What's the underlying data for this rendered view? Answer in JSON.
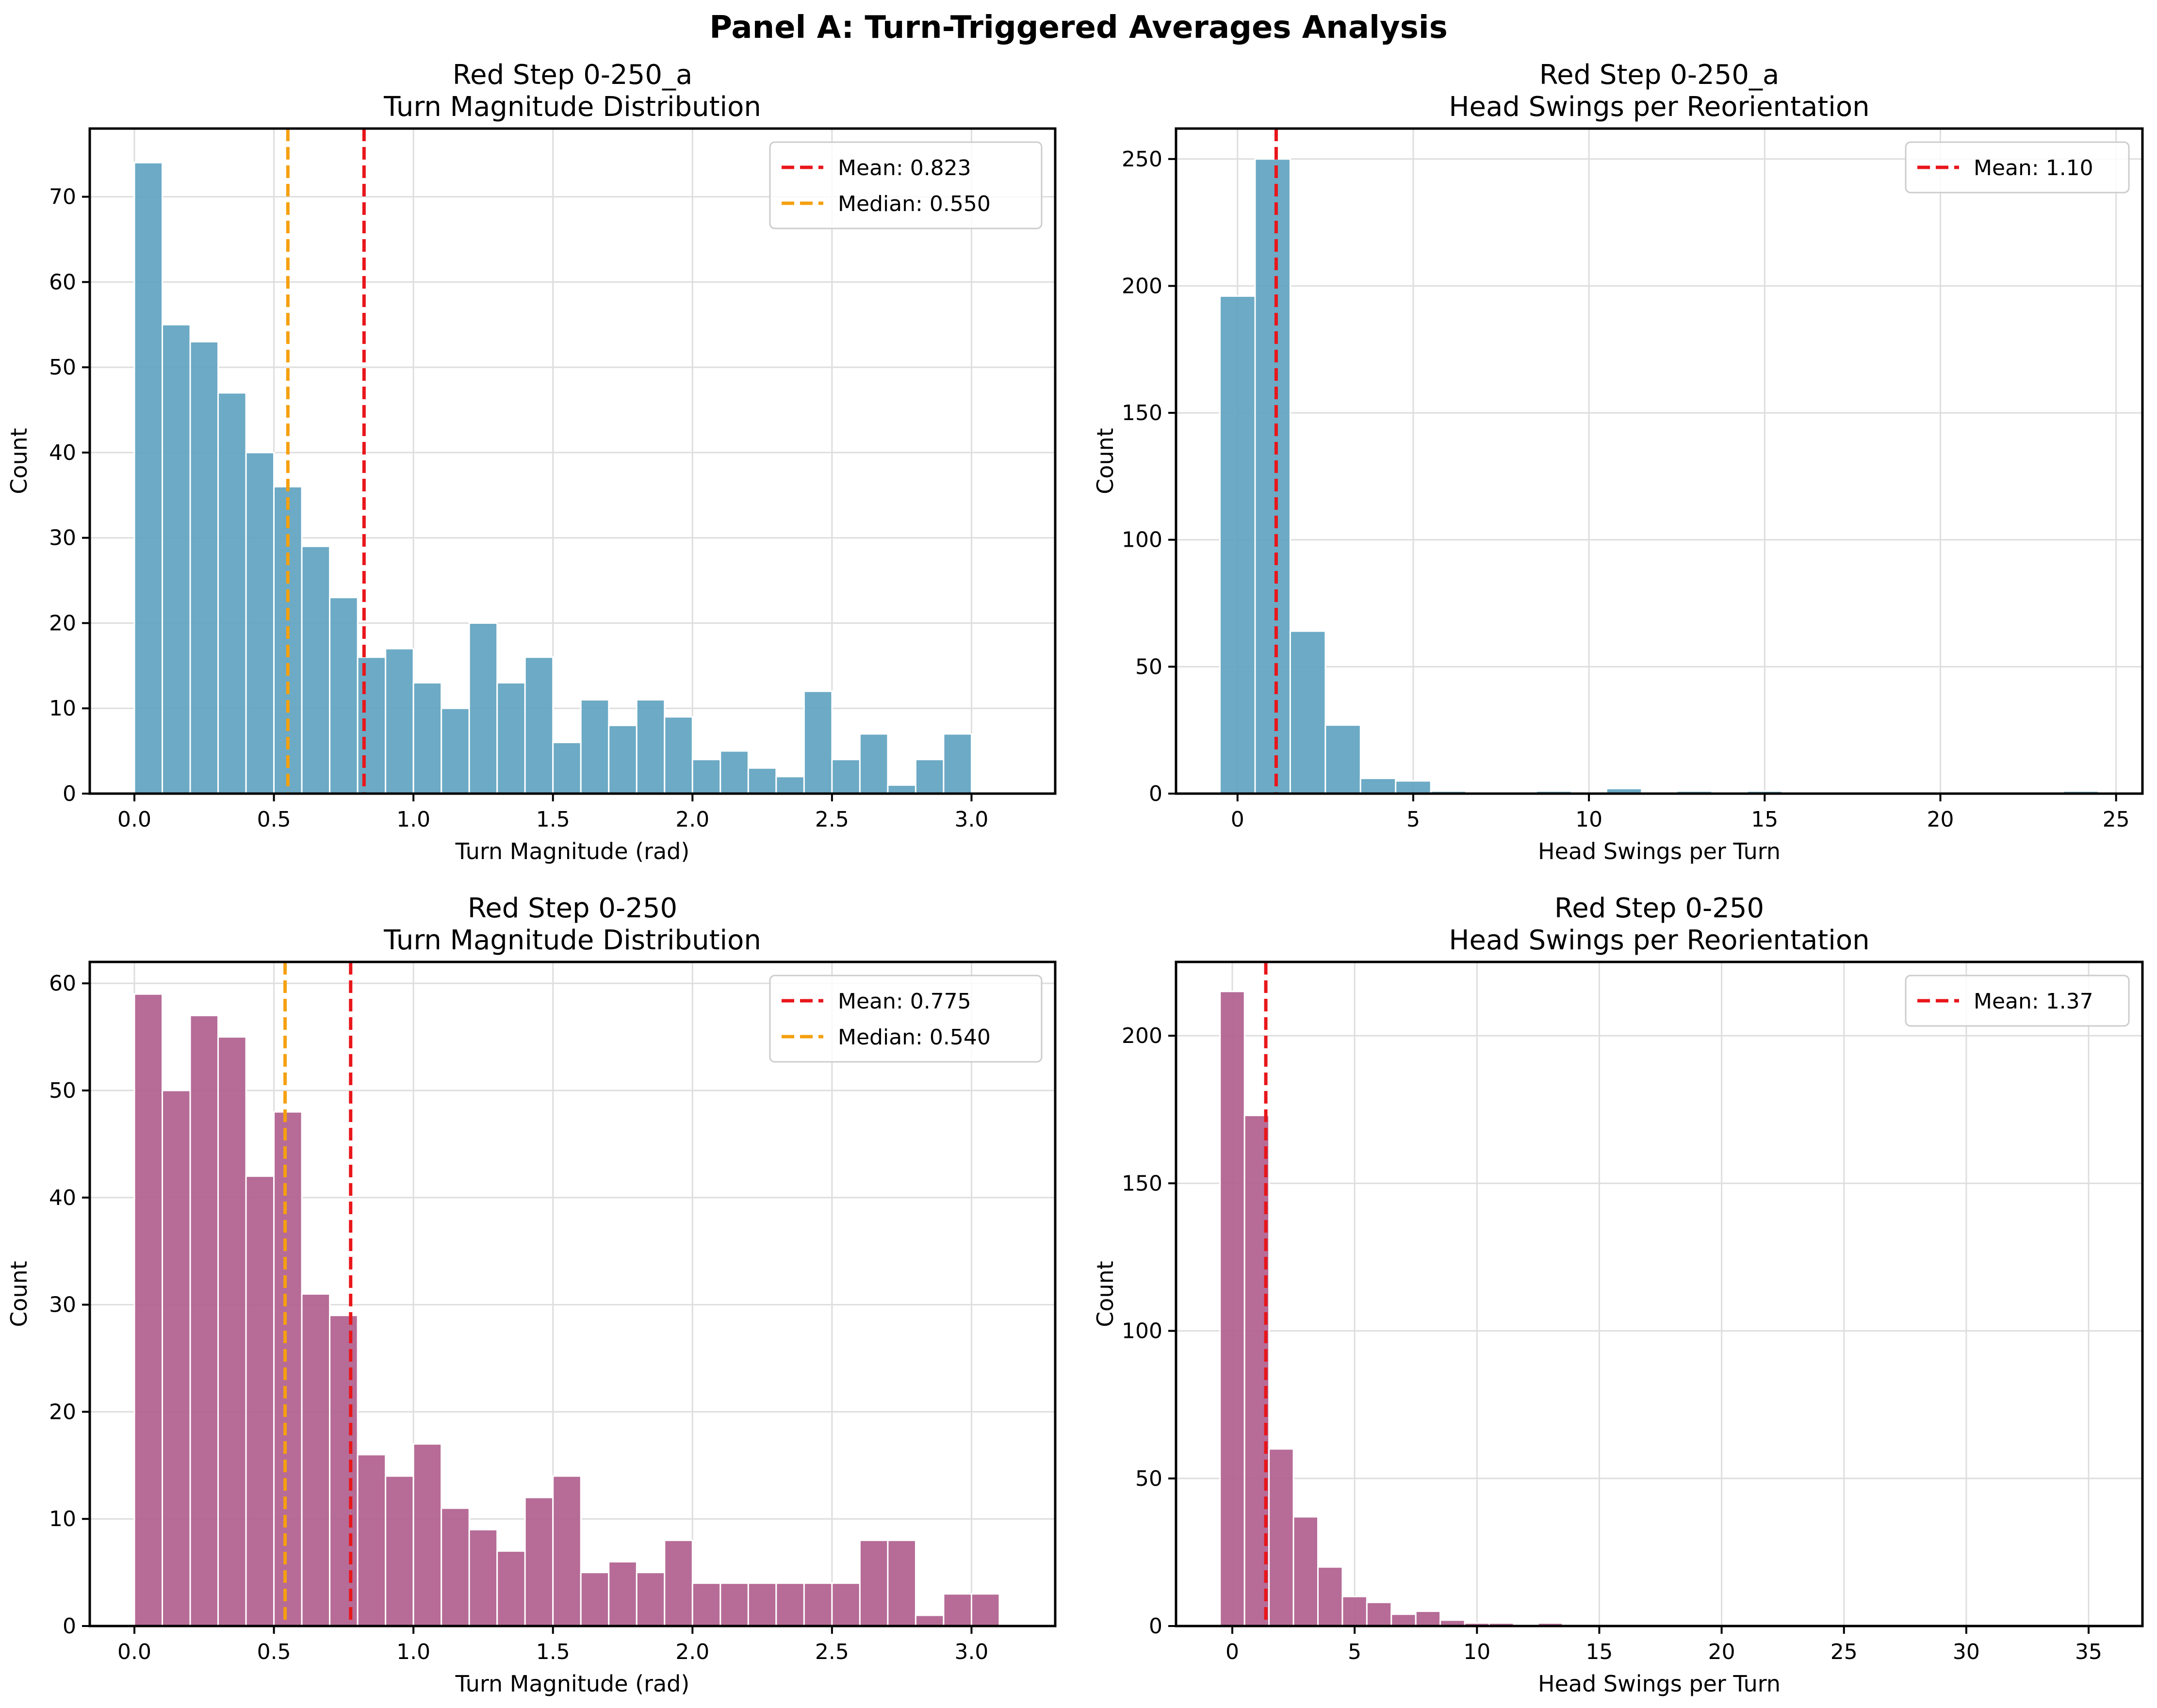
{
  "figure": {
    "suptitle": "Panel A: Turn-Triggered Averages Analysis"
  },
  "chart_data": [
    {
      "type": "bar",
      "panel": "top-left",
      "title_lines": [
        "Red Step 0-250_a",
        "Turn Magnitude Distribution"
      ],
      "xlabel": "Turn Magnitude (rad)",
      "ylabel": "Count",
      "color": "#5fa3c0",
      "bin_start": 0.0,
      "bin_width": 0.1,
      "values": [
        74,
        55,
        53,
        47,
        40,
        36,
        29,
        23,
        16,
        17,
        13,
        10,
        20,
        13,
        16,
        6,
        11,
        8,
        11,
        9,
        4,
        5,
        3,
        2,
        12,
        4,
        7,
        1,
        4,
        7
      ],
      "xlim": [
        -0.16,
        3.3
      ],
      "ylim": [
        0,
        78
      ],
      "xticks": [
        0.0,
        0.5,
        1.0,
        1.5,
        2.0,
        2.5,
        3.0
      ],
      "xtick_labels": [
        "0.0",
        "0.5",
        "1.0",
        "1.5",
        "2.0",
        "2.5",
        "3.0"
      ],
      "yticks": [
        0,
        10,
        20,
        30,
        40,
        50,
        60,
        70
      ],
      "ytick_labels": [
        "0",
        "10",
        "20",
        "30",
        "40",
        "50",
        "60",
        "70"
      ],
      "grid": true,
      "legend_position": "upper-right",
      "lines": [
        {
          "label": "Mean: 0.823",
          "x": 0.823,
          "color": "#e8161b"
        },
        {
          "label": "Median: 0.550",
          "x": 0.55,
          "color": "#f5a00f"
        }
      ]
    },
    {
      "type": "bar",
      "panel": "top-right",
      "title_lines": [
        "Red Step 0-250_a",
        "Head Swings per Reorientation"
      ],
      "xlabel": "Head Swings per Turn",
      "ylabel": "Count",
      "color": "#5fa3c0",
      "bin_start": -0.5,
      "bin_width": 1.0,
      "values": [
        196,
        250,
        64,
        27,
        6,
        5,
        1,
        0,
        0,
        1,
        0,
        2,
        0,
        1,
        0,
        1,
        0,
        0,
        0,
        0,
        0,
        0,
        0,
        0,
        1
      ],
      "xlim": [
        -1.75,
        25.75
      ],
      "ylim": [
        0,
        262
      ],
      "xticks": [
        0,
        5,
        10,
        15,
        20,
        25
      ],
      "xtick_labels": [
        "0",
        "5",
        "10",
        "15",
        "20",
        "25"
      ],
      "yticks": [
        0,
        50,
        100,
        150,
        200,
        250
      ],
      "ytick_labels": [
        "0",
        "50",
        "100",
        "150",
        "200",
        "250"
      ],
      "grid": true,
      "legend_position": "upper-right",
      "lines": [
        {
          "label": "Mean: 1.10",
          "x": 1.1,
          "color": "#e8161b"
        }
      ]
    },
    {
      "type": "bar",
      "panel": "bottom-left",
      "title_lines": [
        "Red Step 0-250",
        "Turn Magnitude Distribution"
      ],
      "xlabel": "Turn Magnitude (rad)",
      "ylabel": "Count",
      "color": "#b0608e",
      "bin_start": 0.0,
      "bin_width": 0.1,
      "values": [
        59,
        50,
        57,
        55,
        42,
        48,
        31,
        29,
        16,
        14,
        17,
        11,
        9,
        7,
        12,
        14,
        5,
        6,
        5,
        8,
        4,
        4,
        4,
        4,
        4,
        4,
        8,
        8,
        1,
        3,
        3
      ],
      "xlim": [
        -0.16,
        3.3
      ],
      "ylim": [
        0,
        62
      ],
      "xticks": [
        0.0,
        0.5,
        1.0,
        1.5,
        2.0,
        2.5,
        3.0
      ],
      "xtick_labels": [
        "0.0",
        "0.5",
        "1.0",
        "1.5",
        "2.0",
        "2.5",
        "3.0"
      ],
      "yticks": [
        0,
        10,
        20,
        30,
        40,
        50,
        60
      ],
      "ytick_labels": [
        "0",
        "10",
        "20",
        "30",
        "40",
        "50",
        "60"
      ],
      "grid": true,
      "legend_position": "upper-right",
      "lines": [
        {
          "label": "Mean: 0.775",
          "x": 0.775,
          "color": "#e8161b"
        },
        {
          "label": "Median: 0.540",
          "x": 0.54,
          "color": "#f5a00f"
        }
      ]
    },
    {
      "type": "bar",
      "panel": "bottom-right",
      "title_lines": [
        "Red Step 0-250",
        "Head Swings per Reorientation"
      ],
      "xlabel": "Head Swings per Turn",
      "ylabel": "Count",
      "color": "#b0608e",
      "bin_start": -0.5,
      "bin_width": 1.0,
      "values": [
        215,
        173,
        60,
        37,
        20,
        10,
        8,
        4,
        5,
        2,
        1,
        1,
        0,
        1,
        0,
        0,
        0,
        0,
        0,
        0,
        0,
        0,
        0,
        0,
        0,
        0,
        0,
        0,
        0,
        0,
        0,
        0,
        0,
        0,
        0,
        0
      ],
      "xlim": [
        -2.3,
        37.2
      ],
      "ylim": [
        0,
        225
      ],
      "xticks": [
        0,
        5,
        10,
        15,
        20,
        25,
        30,
        35
      ],
      "xtick_labels": [
        "0",
        "5",
        "10",
        "15",
        "20",
        "25",
        "30",
        "35"
      ],
      "yticks": [
        0,
        50,
        100,
        150,
        200
      ],
      "ytick_labels": [
        "0",
        "50",
        "100",
        "150",
        "200"
      ],
      "grid": true,
      "legend_position": "upper-right",
      "lines": [
        {
          "label": "Mean: 1.37",
          "x": 1.37,
          "color": "#e8161b"
        }
      ]
    }
  ]
}
